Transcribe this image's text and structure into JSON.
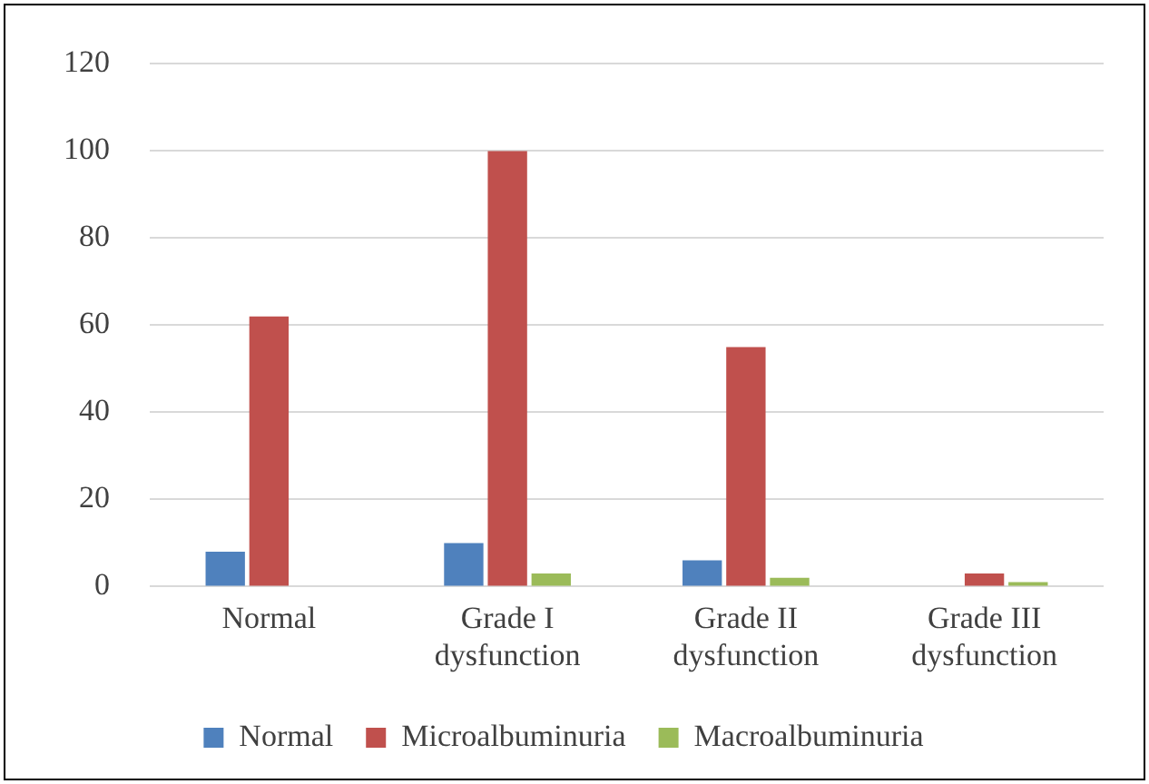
{
  "chart_data": {
    "type": "bar",
    "categories": [
      "Normal",
      "Grade I dysfunction",
      "Grade II dysfunction",
      "Grade III dysfunction"
    ],
    "series": [
      {
        "name": "Normal",
        "color": "#4f81bd",
        "values": [
          8,
          10,
          6,
          0
        ]
      },
      {
        "name": "Microalbuminuria",
        "color": "#c0504d",
        "values": [
          62,
          100,
          55,
          3
        ]
      },
      {
        "name": "Macroalbuminuria",
        "color": "#9bbb59",
        "values": [
          0,
          3,
          2,
          1
        ]
      }
    ],
    "ylim": [
      0,
      120
    ],
    "yticks": [
      0,
      20,
      40,
      60,
      80,
      100,
      120
    ],
    "grid": "y",
    "legend": "bottom"
  }
}
